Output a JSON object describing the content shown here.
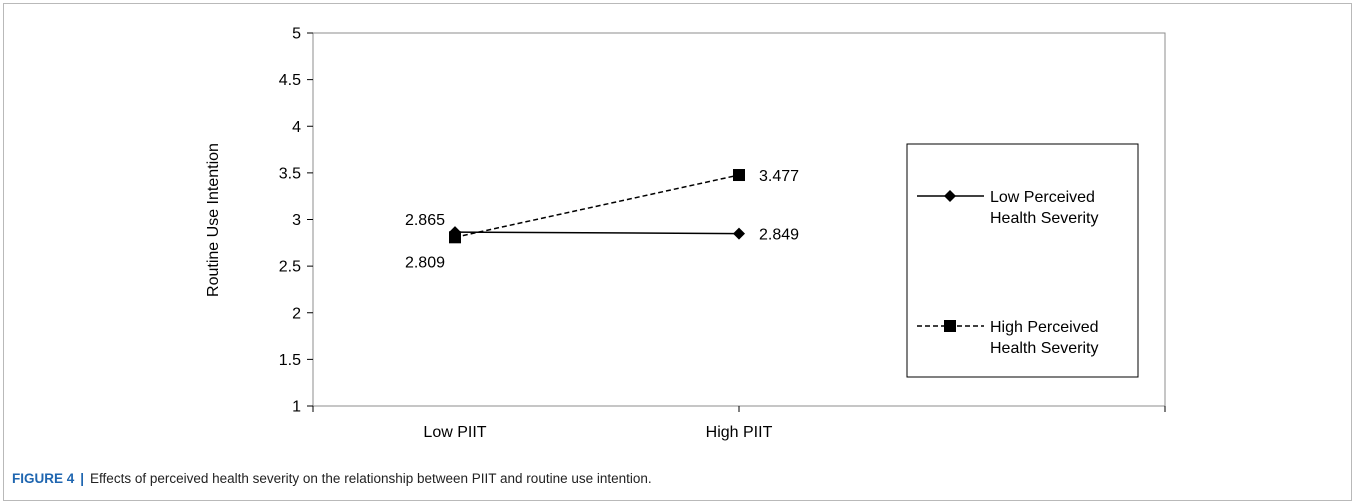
{
  "caption": {
    "label": "FIGURE 4",
    "separator": "|",
    "text": "Effects of perceived health severity on the relationship between PIIT and routine use intention."
  },
  "chart_data": {
    "type": "line",
    "title": "",
    "xlabel": "",
    "ylabel": "Routine Use Intention",
    "categories": [
      "Low PIIT",
      "High PIIT"
    ],
    "ylim": [
      1,
      5
    ],
    "yticks": [
      "1",
      "1.5",
      "2",
      "2.5",
      "3",
      "3.5",
      "4",
      "4.5",
      "5"
    ],
    "grid": false,
    "legend_placement": "right",
    "series": [
      {
        "name": "Low Perceived Health Severity",
        "legend_lines": [
          "Low Perceived",
          "Health Severity"
        ],
        "values": [
          2.865,
          2.849
        ],
        "labels": [
          "2.865",
          "2.849"
        ],
        "line_style": "solid",
        "marker": "diamond",
        "color": "#000000"
      },
      {
        "name": "High Perceived Health Severity",
        "legend_lines": [
          "High Perceived",
          "Health Severity"
        ],
        "values": [
          2.809,
          3.477
        ],
        "labels": [
          "2.809",
          "3.477"
        ],
        "line_style": "dashed",
        "marker": "square",
        "color": "#000000"
      }
    ]
  }
}
